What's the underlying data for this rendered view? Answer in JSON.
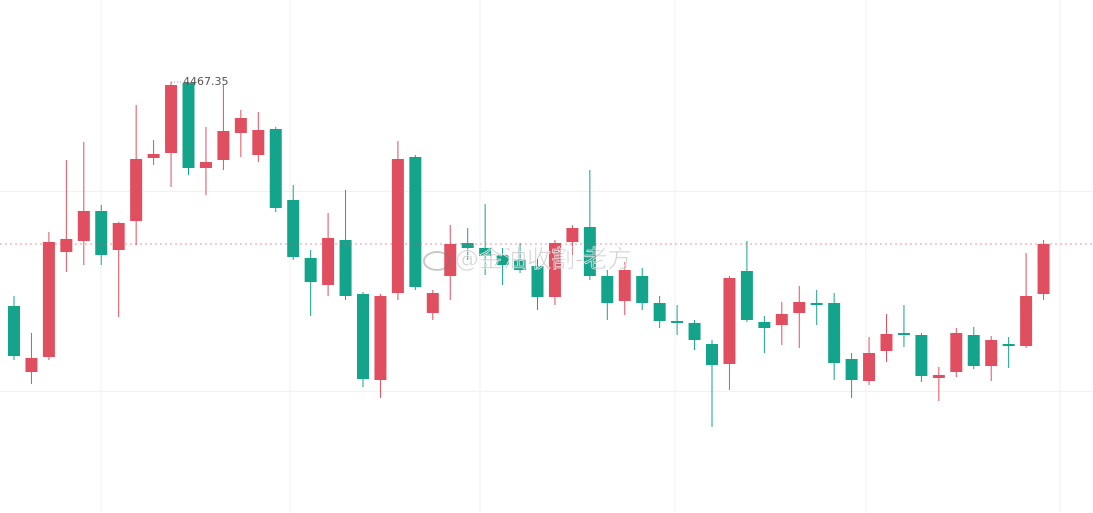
{
  "chart_data": {
    "type": "candlestick",
    "watermark": "@金油收割-老方",
    "up_color": "#e04f5f",
    "down_color": "#14a38b",
    "ylim": [
      4359.6,
      4487.85
    ],
    "yticks": [
      4440,
      4390
    ],
    "grid": true,
    "open": [
      4411.35,
      4394.85,
      4398.6,
      4424.85,
      4427.6,
      4435.1,
      4425.35,
      4432.6,
      4448.35,
      4449.6,
      4467.1,
      4445.85,
      4447.85,
      4454.6,
      4449.1,
      4455.6,
      4437.85,
      4423.35,
      4416.6,
      4427.85,
      4414.35,
      4392.85,
      4414.6,
      4448.6,
      4409.6,
      4418.85,
      4427.1,
      4425.85,
      4424.1,
      4422.85,
      4421.35,
      4413.6,
      4427.35,
      4431.1,
      4418.85,
      4412.6,
      4418.85,
      4412.1,
      4407.6,
      4407.1,
      4401.85,
      4396.85,
      4420.1,
      4407.35,
      4406.6,
      4409.6,
      4412.1,
      4412.1,
      4398.1,
      4392.6,
      4400.1,
      4404.6,
      4404.1,
      4393.35,
      4394.85,
      4404.1,
      4396.35,
      4401.85,
      4401.35,
      4414.35
    ],
    "high": [
      4413.85,
      4404.6,
      4429.85,
      4447.85,
      4452.35,
      4436.6,
      4432.35,
      4461.6,
      4452.85,
      4467.35,
      4467.1,
      4456.1,
      4466.6,
      4460.35,
      4459.85,
      4456.1,
      4441.6,
      4425.35,
      4434.6,
      4440.35,
      4414.85,
      4414.35,
      4452.6,
      4449.1,
      4415.35,
      4431.6,
      4430.85,
      4436.85,
      4425.85,
      4427.1,
      4423.35,
      4427.85,
      4431.6,
      4445.35,
      4420.35,
      4422.35,
      4420.85,
      4413.85,
      4411.6,
      4407.85,
      4402.85,
      4418.85,
      4427.6,
      4408.85,
      4412.35,
      4416.35,
      4415.35,
      4414.6,
      4399.6,
      4403.6,
      4409.35,
      4411.6,
      4404.6,
      4396.1,
      4405.85,
      4406.1,
      4403.85,
      4403.6,
      4424.6,
      4427.85
    ],
    "low": [
      4397.85,
      4391.85,
      4397.85,
      4419.85,
      4421.6,
      4421.6,
      4408.6,
      4426.6,
      4446.6,
      4441.1,
      4444.1,
      4439.1,
      4445.35,
      4448.6,
      4447.35,
      4434.85,
      4422.85,
      4408.85,
      4413.85,
      4412.85,
      4391.1,
      4388.35,
      4412.85,
      4415.35,
      4407.85,
      4412.85,
      4422.85,
      4419.1,
      4416.6,
      4419.6,
      4410.35,
      4411.6,
      4424.1,
      4417.85,
      4407.85,
      4409.1,
      4410.35,
      4405.85,
      4404.1,
      4400.35,
      4381.1,
      4390.35,
      4407.35,
      4399.6,
      4401.6,
      4400.85,
      4406.6,
      4392.85,
      4388.35,
      4391.6,
      4397.35,
      4401.1,
      4392.35,
      4387.6,
      4393.6,
      4395.6,
      4392.6,
      4395.85,
      4400.85,
      4412.85
    ],
    "close": [
      4398.85,
      4398.35,
      4427.35,
      4428.1,
      4435.1,
      4424.1,
      4432.1,
      4448.1,
      4449.35,
      4466.6,
      4445.85,
      4447.35,
      4455.1,
      4458.35,
      4455.35,
      4435.85,
      4423.6,
      4417.35,
      4428.35,
      4413.85,
      4393.1,
      4413.85,
      4448.1,
      4416.1,
      4414.6,
      4426.85,
      4425.85,
      4423.85,
      4421.6,
      4420.35,
      4413.6,
      4427.1,
      4430.85,
      4418.85,
      4412.1,
      4420.35,
      4412.1,
      4407.6,
      4407.1,
      4402.85,
      4396.6,
      4418.35,
      4407.85,
      4405.85,
      4409.35,
      4412.35,
      4411.6,
      4397.1,
      4392.85,
      4399.6,
      4404.35,
      4404.1,
      4393.85,
      4394.1,
      4404.6,
      4396.35,
      4402.85,
      4401.35,
      4413.85,
      4426.85
    ]
  }
}
